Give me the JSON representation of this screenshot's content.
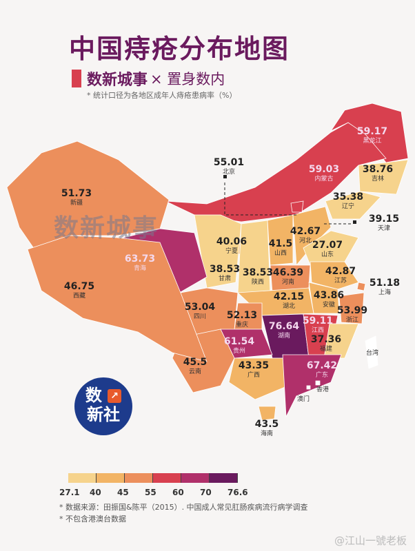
{
  "header": {
    "title": "中国痔疮分布地图",
    "brand": "数新城事",
    "brand_suffix": "× 置身数内",
    "note": "* 统计口径为各地区成年人痔疮患病率（%）"
  },
  "watermark_overlay": "数新城事",
  "logo": {
    "line1": "数",
    "line2": "新社",
    "icon": "chart-line-icon"
  },
  "legend": {
    "ticks": [
      "27.1",
      "40",
      "45",
      "55",
      "60",
      "70",
      "76.6"
    ],
    "colors": [
      "#f6d38c",
      "#f2b465",
      "#ec8f5c",
      "#d8404f",
      "#b0306a",
      "#6a1a5e"
    ]
  },
  "footer": {
    "source": "* 数据来源：田振国&陈平（2015）. 中国成人常见肛肠疾病流行病学调查",
    "exclusion": "* 不包含港澳台数据",
    "weibo": "@江山一號老板"
  },
  "map_data": {
    "regions": [
      {
        "name": "黑龙江",
        "value": "59.17"
      },
      {
        "name": "吉林",
        "value": "38.76"
      },
      {
        "name": "辽宁",
        "value": "35.38"
      },
      {
        "name": "内蒙古",
        "value": "59.03"
      },
      {
        "name": "北京",
        "value": "55.01"
      },
      {
        "name": "天津",
        "value": "39.15"
      },
      {
        "name": "河北",
        "value": "42.67"
      },
      {
        "name": "山西",
        "value": "41.5"
      },
      {
        "name": "山东",
        "value": "27.07"
      },
      {
        "name": "宁夏",
        "value": "40.06"
      },
      {
        "name": "甘肃",
        "value": "38.53"
      },
      {
        "name": "陕西",
        "value": "38.53"
      },
      {
        "name": "河南",
        "value": "46.39"
      },
      {
        "name": "江苏",
        "value": "42.87"
      },
      {
        "name": "安徽",
        "value": "43.86"
      },
      {
        "name": "上海",
        "value": "51.18"
      },
      {
        "name": "浙江",
        "value": "53.99"
      },
      {
        "name": "湖北",
        "value": "42.15"
      },
      {
        "name": "重庆",
        "value": "52.13"
      },
      {
        "name": "四川",
        "value": "53.04"
      },
      {
        "name": "湖南",
        "value": "76.64"
      },
      {
        "name": "江西",
        "value": "59.11"
      },
      {
        "name": "贵州",
        "value": "61.54"
      },
      {
        "name": "福建",
        "value": "37.36"
      },
      {
        "name": "云南",
        "value": "45.5"
      },
      {
        "name": "广西",
        "value": "43.35"
      },
      {
        "name": "广东",
        "value": "67.42"
      },
      {
        "name": "海南",
        "value": "43.5"
      },
      {
        "name": "青海",
        "value": "63.73"
      },
      {
        "name": "新疆",
        "value": "51.73"
      },
      {
        "name": "西藏",
        "value": "46.75"
      },
      {
        "name": "香港",
        "value": ""
      },
      {
        "name": "澳门",
        "value": ""
      },
      {
        "name": "台湾",
        "value": ""
      }
    ]
  }
}
